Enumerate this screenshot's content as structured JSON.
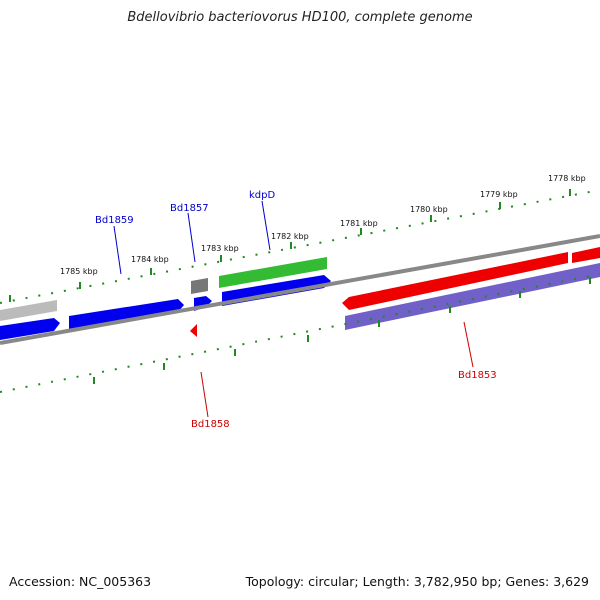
{
  "title": "Bdellovibrio bacteriovorus HD100, complete genome",
  "footer": {
    "accession": "Accession: NC_005363",
    "topology": "Topology: circular; Length: 3,782,950 bp; Genes: 3,629"
  },
  "colors": {
    "forward_cds": "#0000ee",
    "reverse_cds": "#ee0000",
    "trna": "#33bb33",
    "reverse_other": "#7060c8",
    "backbone": "#888888",
    "grey_feature": "#bbbbbb",
    "tick": "#228822",
    "forward_label": "#0000cc",
    "reverse_label": "#cc0000"
  },
  "scale_labels": [
    "1785 kbp",
    "1784 kbp",
    "1783 kbp",
    "1782 kbp",
    "1781 kbp",
    "1780 kbp",
    "1779 kbp",
    "1778 kbp"
  ],
  "gene_labels": [
    {
      "text": "Bd1859",
      "strand": "forward"
    },
    {
      "text": "Bd1857",
      "strand": "forward"
    },
    {
      "text": "kdpD",
      "strand": "forward"
    },
    {
      "text": "Bd1858",
      "strand": "reverse"
    },
    {
      "text": "Bd1853",
      "strand": "reverse"
    }
  ]
}
